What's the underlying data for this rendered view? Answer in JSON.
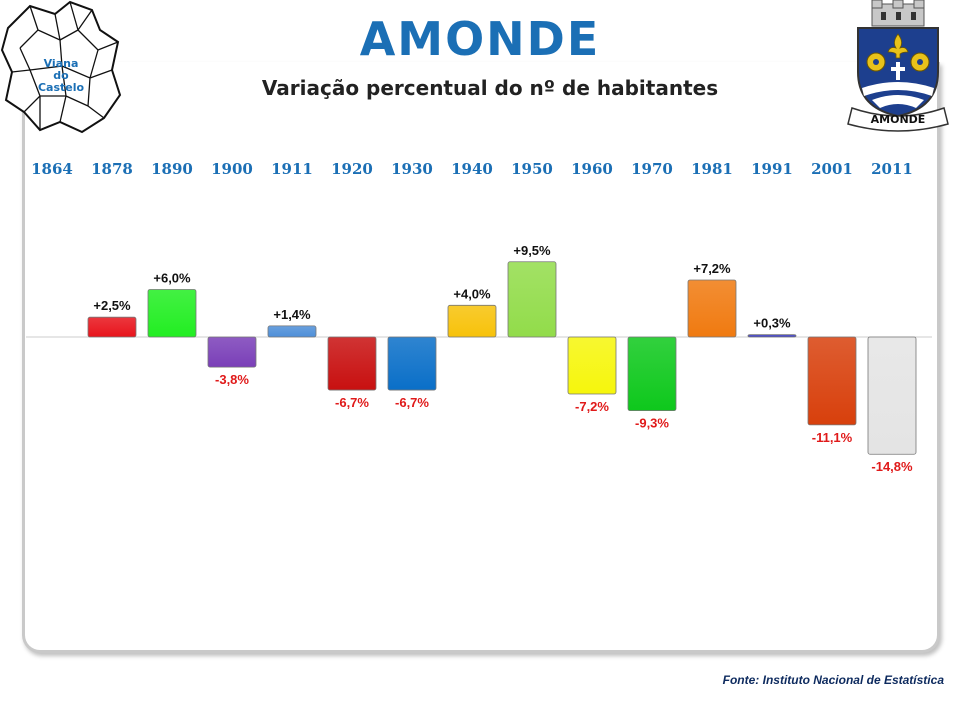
{
  "header": {
    "title": "AMONDE",
    "subtitle": "Variação percentual do nº de habitantes",
    "map_label_lines": [
      "Viana",
      "do",
      "Castelo"
    ],
    "crest_label": "AMONDE"
  },
  "footer": {
    "source": "Fonte: Instituto Nacional de Estatística"
  },
  "chart_data": {
    "type": "bar",
    "title": "Variação percentual do nº de habitantes",
    "xlabel": "",
    "ylabel": "",
    "categories": [
      "1864",
      "1878",
      "1890",
      "1900",
      "1911",
      "1920",
      "1930",
      "1940",
      "1950",
      "1960",
      "1970",
      "1981",
      "1991",
      "2001",
      "2011"
    ],
    "values": [
      null,
      2.5,
      6.0,
      -3.8,
      1.4,
      -6.7,
      -6.7,
      4.0,
      9.5,
      -7.2,
      -9.3,
      7.2,
      0.3,
      -11.1,
      -14.8
    ],
    "labels": [
      "",
      "+2,5%",
      "+6,0%",
      "-3,8%",
      "+1,4%",
      "-6,7%",
      "-6,7%",
      "+4,0%",
      "+9,5%",
      "-7,2%",
      "-9,3%",
      "+7,2%",
      "+0,3%",
      "-11,1%",
      "-14,8%"
    ],
    "colors": [
      "",
      "#e8141c",
      "#22ee22",
      "#7a3fb8",
      "#4e8fd8",
      "#c81010",
      "#0a6fc8",
      "#f7c20a",
      "#92dc4a",
      "#f6f60c",
      "#0ec81c",
      "#f07a10",
      "#4040c0",
      "#d8400c",
      "#e4e4e4"
    ],
    "label_colors": {
      "positive": "#111111",
      "negative": "#e01a1a"
    },
    "ylim": [
      -16,
      12
    ],
    "grid": false,
    "legend": "none"
  }
}
